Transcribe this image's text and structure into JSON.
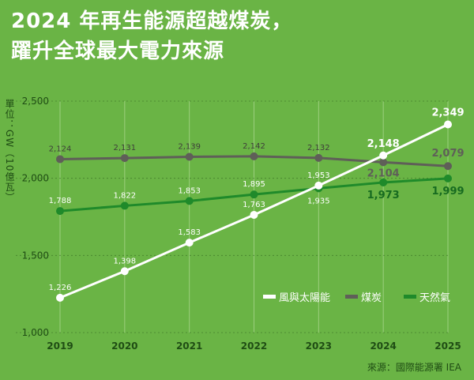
{
  "title_lines": [
    "2024 年再生能源超越煤炭，",
    "躍升全球最大電力來源"
  ],
  "source": "來源：國際能源署 IEA",
  "colors": {
    "background": "#6ab445",
    "solar_wind": "#ffffff",
    "coal": "#5f5f58",
    "gas": "#1f8a2a",
    "axis_text": "#1f4d14",
    "grid": "#9ccf7e"
  },
  "chart_data": {
    "type": "line",
    "title": "2024 年再生能源超越煤炭，躍升全球最大電力來源",
    "ylabel": "單位：GW（10億瓦）",
    "xlabel": "",
    "x": [
      "2019",
      "2020",
      "2021",
      "2022",
      "2023",
      "2024",
      "2025"
    ],
    "ylim": [
      1000,
      2500
    ],
    "yticks": [
      1000,
      1500,
      2000,
      2500
    ],
    "ytick_labels": [
      "1,000",
      "1,500",
      "2,000",
      "2,500"
    ],
    "grid": "vertical",
    "legend_position": "right",
    "series": [
      {
        "name": "風與太陽能",
        "key": "solar_wind",
        "values": [
          1226,
          1398,
          1583,
          1763,
          1953,
          2148,
          2349
        ],
        "labels": [
          "1,226",
          "1,398",
          "1,583",
          "1,763",
          "1,953",
          "2,148",
          "2,349"
        ]
      },
      {
        "name": "煤炭",
        "key": "coal",
        "values": [
          2124,
          2131,
          2139,
          2142,
          2132,
          2104,
          2079
        ],
        "labels": [
          "2,124",
          "2,131",
          "2,139",
          "2,142",
          "2,132",
          "2,104",
          "2,079"
        ]
      },
      {
        "name": "天然氣",
        "key": "gas",
        "values": [
          1788,
          1822,
          1853,
          1895,
          1935,
          1973,
          1999
        ],
        "labels": [
          "1,788",
          "1,822",
          "1,853",
          "1,895",
          "1,935",
          "1,973",
          "1,999"
        ]
      }
    ]
  }
}
